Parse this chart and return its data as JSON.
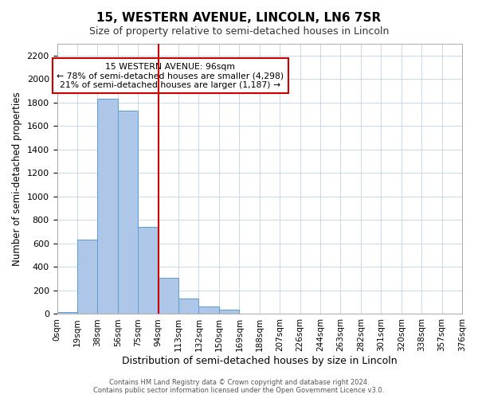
{
  "title": "15, WESTERN AVENUE, LINCOLN, LN6 7SR",
  "subtitle": "Size of property relative to semi-detached houses in Lincoln",
  "xlabel": "Distribution of semi-detached houses by size in Lincoln",
  "ylabel": "Number of semi-detached properties",
  "bin_labels": [
    "0sqm",
    "19sqm",
    "38sqm",
    "56sqm",
    "75sqm",
    "94sqm",
    "113sqm",
    "132sqm",
    "150sqm",
    "169sqm",
    "188sqm",
    "207sqm",
    "226sqm",
    "244sqm",
    "263sqm",
    "282sqm",
    "301sqm",
    "320sqm",
    "338sqm",
    "357sqm",
    "376sqm"
  ],
  "bar_values": [
    20,
    630,
    1830,
    1730,
    740,
    305,
    130,
    65,
    40,
    5,
    0,
    0,
    0,
    0,
    0,
    0,
    0,
    0,
    0,
    0
  ],
  "bar_color": "#aec6e8",
  "bar_edge_color": "#5a9fd4",
  "property_line_bin": 5,
  "property_line_color": "#cc0000",
  "annotation_title": "15 WESTERN AVENUE: 96sqm",
  "annotation_line1": "← 78% of semi-detached houses are smaller (4,298)",
  "annotation_line2": "21% of semi-detached houses are larger (1,187) →",
  "annotation_box_color": "#ffffff",
  "annotation_box_edge": "#cc0000",
  "ylim": [
    0,
    2300
  ],
  "yticks": [
    0,
    200,
    400,
    600,
    800,
    1000,
    1200,
    1400,
    1600,
    1800,
    2000,
    2200
  ],
  "footer1": "Contains HM Land Registry data © Crown copyright and database right 2024.",
  "footer2": "Contains public sector information licensed under the Open Government Licence v3.0."
}
